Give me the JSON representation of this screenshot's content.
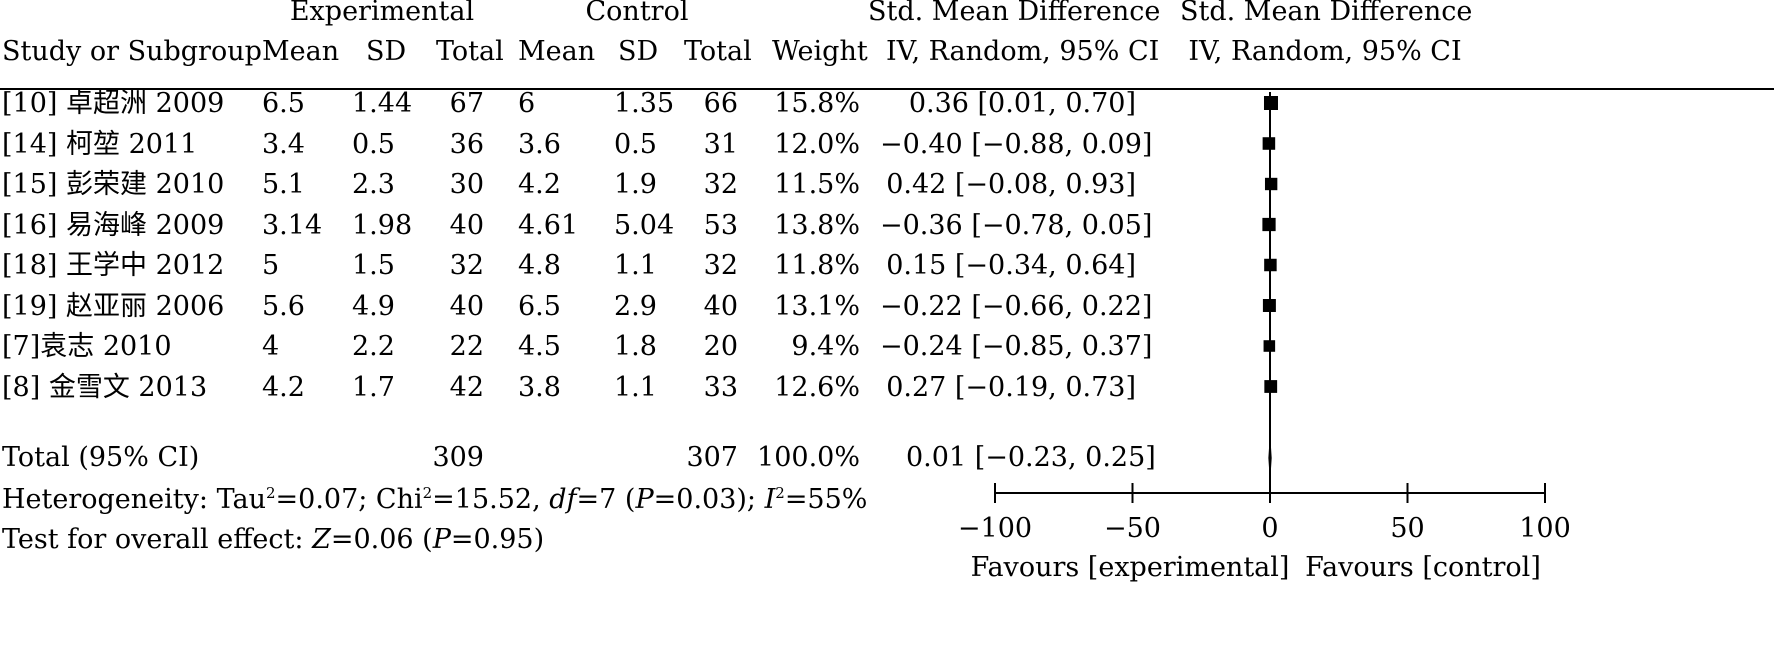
{
  "header": {
    "experimental": "Experimental",
    "control": "Control",
    "smd": "Std. Mean Difference",
    "smd_plot": "Std. Mean Difference",
    "study": "Study or Subgroup",
    "mean": "Mean",
    "sd": "SD",
    "total": "Total",
    "weight": "Weight",
    "ci_method": "IV, Random, 95% CI",
    "ci_method_plot": "IV, Random, 95% CI"
  },
  "studies": [
    {
      "name": "[10] 卓超洲 2009",
      "exp_mean": "6.5",
      "exp_sd": "1.44",
      "exp_total": "67",
      "ctl_mean": "6",
      "ctl_sd": "1.35",
      "ctl_total": "66",
      "weight": "15.8%",
      "ci": "0.36 [0.01, 0.70]"
    },
    {
      "name": "[14] 柯堃 2011",
      "exp_mean": "3.4",
      "exp_sd": "0.5",
      "exp_total": "36",
      "ctl_mean": "3.6",
      "ctl_sd": "0.5",
      "ctl_total": "31",
      "weight": "12.0%",
      "ci": "−0.40 [−0.88, 0.09]"
    },
    {
      "name": "[15] 彭荣建 2010",
      "exp_mean": "5.1",
      "exp_sd": "2.3",
      "exp_total": "30",
      "ctl_mean": "4.2",
      "ctl_sd": "1.9",
      "ctl_total": "32",
      "weight": "11.5%",
      "ci": "0.42 [−0.08, 0.93]"
    },
    {
      "name": "[16] 易海峰 2009",
      "exp_mean": "3.14",
      "exp_sd": "1.98",
      "exp_total": "40",
      "ctl_mean": "4.61",
      "ctl_sd": "5.04",
      "ctl_total": "53",
      "weight": "13.8%",
      "ci": "−0.36 [−0.78, 0.05]"
    },
    {
      "name": "[18] 王学中 2012",
      "exp_mean": "5",
      "exp_sd": "1.5",
      "exp_total": "32",
      "ctl_mean": "4.8",
      "ctl_sd": "1.1",
      "ctl_total": "32",
      "weight": "11.8%",
      "ci": "0.15 [−0.34, 0.64]"
    },
    {
      "name": "[19] 赵亚丽 2006",
      "exp_mean": "5.6",
      "exp_sd": "4.9",
      "exp_total": "40",
      "ctl_mean": "6.5",
      "ctl_sd": "2.9",
      "ctl_total": "40",
      "weight": "13.1%",
      "ci": "−0.22 [−0.66, 0.22]"
    },
    {
      "name": "[7]袁志 2010",
      "exp_mean": "4",
      "exp_sd": "2.2",
      "exp_total": "22",
      "ctl_mean": "4.5",
      "ctl_sd": "1.8",
      "ctl_total": "20",
      "weight": "9.4%",
      "ci": "−0.24 [−0.85, 0.37]"
    },
    {
      "name": "[8] 金雪文 2013",
      "exp_mean": "4.2",
      "exp_sd": "1.7",
      "exp_total": "42",
      "ctl_mean": "3.8",
      "ctl_sd": "1.1",
      "ctl_total": "33",
      "weight": "12.6%",
      "ci": "0.27 [−0.19, 0.73]"
    }
  ],
  "total": {
    "label": "Total (95% CI)",
    "exp_total": "309",
    "ctl_total": "307",
    "weight": "100.0%",
    "ci": "0.01 [−0.23, 0.25]"
  },
  "heterogeneity": {
    "prefix": "Heterogeneity: Tau",
    "tau_sup": "2",
    "tau_val": "=0.07; Chi",
    "chi_sup": "2",
    "chi_val": "=15.52, ",
    "df_label": "df",
    "df_val": "=7 (",
    "p_label": "P",
    "p_val": "=0.03); ",
    "i_label": "I",
    "i_sup": "2",
    "i_val": "=55%"
  },
  "overall_effect": {
    "prefix": "Test for overall effect: ",
    "z_label": "Z",
    "z_val": "=0.06 (",
    "p_label": "P",
    "p_val": "=0.95)"
  },
  "chart_data": {
    "type": "forest",
    "axis": {
      "ticks": [
        -100,
        -50,
        0,
        50,
        100
      ],
      "tick_labels": [
        "−100",
        "−50",
        "0",
        "50",
        "100"
      ],
      "xlim": [
        -100,
        100
      ]
    },
    "favours_left": "Favours [experimental]",
    "favours_right": "Favours [control]",
    "points": [
      {
        "study": "[10] 卓超洲 2009",
        "smd": 0.36,
        "lower": 0.01,
        "upper": 0.7,
        "weight": 15.8
      },
      {
        "study": "[14] 柯堃 2011",
        "smd": -0.4,
        "lower": -0.88,
        "upper": 0.09,
        "weight": 12.0
      },
      {
        "study": "[15] 彭荣建 2010",
        "smd": 0.42,
        "lower": -0.08,
        "upper": 0.93,
        "weight": 11.5
      },
      {
        "study": "[16] 易海峰 2009",
        "smd": -0.36,
        "lower": -0.78,
        "upper": 0.05,
        "weight": 13.8
      },
      {
        "study": "[18] 王学中 2012",
        "smd": 0.15,
        "lower": -0.34,
        "upper": 0.64,
        "weight": 11.8
      },
      {
        "study": "[19] 赵亚丽 2006",
        "smd": -0.22,
        "lower": -0.66,
        "upper": 0.22,
        "weight": 13.1
      },
      {
        "study": "[7]袁志 2010",
        "smd": -0.24,
        "lower": -0.85,
        "upper": 0.37,
        "weight": 9.4
      },
      {
        "study": "[8] 金雪文 2013",
        "smd": 0.27,
        "lower": -0.19,
        "upper": 0.73,
        "weight": 12.6
      }
    ],
    "overall": {
      "smd": 0.01,
      "lower": -0.23,
      "upper": 0.25
    }
  }
}
